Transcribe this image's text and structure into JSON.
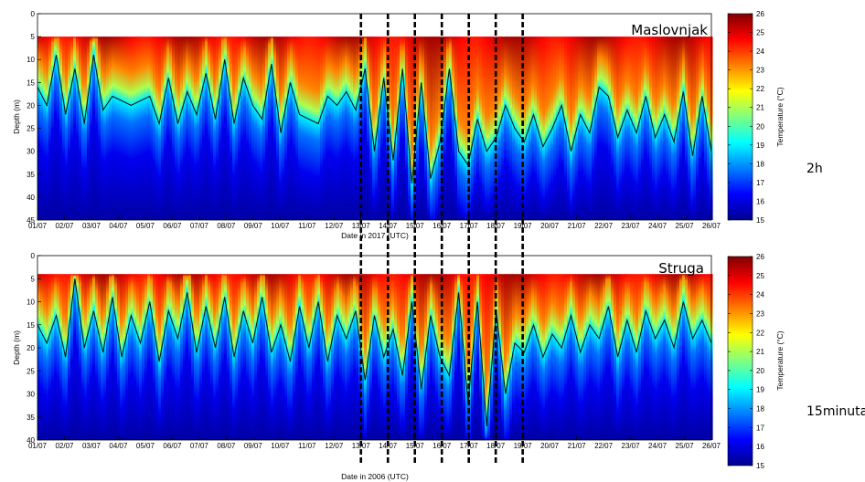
{
  "chart_data": [
    {
      "type": "heatmap",
      "panel": "top",
      "title": "Maslovnjak",
      "xlabel": "Date in 2017 (UTC)",
      "ylabel": "Depth (m)",
      "x_ticks": [
        "01/07",
        "02/07",
        "03/07",
        "04/07",
        "05/07",
        "06/07",
        "07/07",
        "08/07",
        "09/07",
        "10/07",
        "11/07",
        "12/07",
        "13/07",
        "14/07",
        "15/07",
        "16/07",
        "17/07",
        "18/07",
        "19/07",
        "20/07",
        "21/07",
        "22/07",
        "23/07",
        "24/07",
        "25/07",
        "26/07"
      ],
      "y_ticks": [
        0,
        5,
        10,
        15,
        20,
        25,
        30,
        35,
        40,
        45
      ],
      "ylim": [
        0,
        45
      ],
      "y_reversed": true,
      "data_depth_range": [
        5,
        45
      ],
      "colorbar": {
        "label": "Temperature (°C)",
        "range": [
          15,
          26
        ],
        "ticks": [
          15,
          16,
          17,
          18,
          19,
          20,
          21,
          22,
          23,
          24,
          25,
          26
        ]
      },
      "isotherm_depth_by_day": [
        16,
        20,
        9,
        22,
        12,
        24,
        9,
        21,
        18,
        19,
        20,
        19,
        18,
        24,
        14,
        24,
        17,
        22,
        13,
        23,
        10,
        24,
        14,
        20,
        23,
        11,
        26,
        15,
        22,
        23,
        24,
        18,
        20,
        17,
        21,
        12,
        30,
        14,
        32,
        12,
        37,
        15,
        36,
        28,
        12,
        30,
        33,
        23,
        30,
        27,
        20,
        25,
        28,
        22,
        29,
        25,
        20,
        30,
        22,
        26,
        16,
        18,
        27,
        21,
        26,
        18,
        27,
        22,
        28,
        17,
        31,
        18,
        30
      ],
      "note_label": "2h"
    },
    {
      "type": "heatmap",
      "panel": "bottom",
      "title": "Struga",
      "xlabel": "Date in 2006 (UTC)",
      "ylabel": "Depth (m)",
      "x_ticks": [
        "01/07",
        "02/07",
        "03/07",
        "04/07",
        "05/07",
        "06/07",
        "07/07",
        "08/07",
        "09/07",
        "10/07",
        "11/07",
        "12/07",
        "13/07",
        "14/07",
        "15/07",
        "16/07",
        "17/07",
        "18/07",
        "19/07",
        "20/07",
        "21/07",
        "22/07",
        "23/07",
        "24/07",
        "25/07",
        "26/07"
      ],
      "y_ticks": [
        0,
        5,
        10,
        15,
        20,
        25,
        30,
        35,
        40
      ],
      "ylim": [
        0,
        40
      ],
      "y_reversed": true,
      "data_depth_range": [
        4,
        40
      ],
      "colorbar": {
        "label": "Temperature (°C)",
        "range": [
          15,
          26
        ],
        "ticks": [
          15,
          16,
          17,
          18,
          19,
          20,
          21,
          22,
          23,
          24,
          25,
          26
        ]
      },
      "isotherm_depth_by_day": [
        15,
        19,
        13,
        22,
        5,
        20,
        12,
        21,
        9,
        22,
        13,
        19,
        10,
        23,
        12,
        18,
        8,
        21,
        11,
        20,
        9,
        22,
        12,
        19,
        9,
        21,
        15,
        23,
        11,
        20,
        10,
        23,
        13,
        18,
        12,
        27,
        13,
        22,
        16,
        26,
        10,
        29,
        13,
        22,
        26,
        8,
        32,
        10,
        37,
        12,
        30,
        19,
        21,
        15,
        22,
        17,
        20,
        13,
        21,
        15,
        18,
        11,
        22,
        14,
        21,
        12,
        18,
        14,
        20,
        10,
        18,
        14,
        19
      ],
      "note_label": "15minuta"
    }
  ],
  "marker_dates": [
    "13/07",
    "14/07",
    "15/07",
    "16/07",
    "17/07",
    "18/07",
    "19/07"
  ],
  "colors": {
    "marker_line": "#000000",
    "isotherm": "#0a1a14"
  }
}
